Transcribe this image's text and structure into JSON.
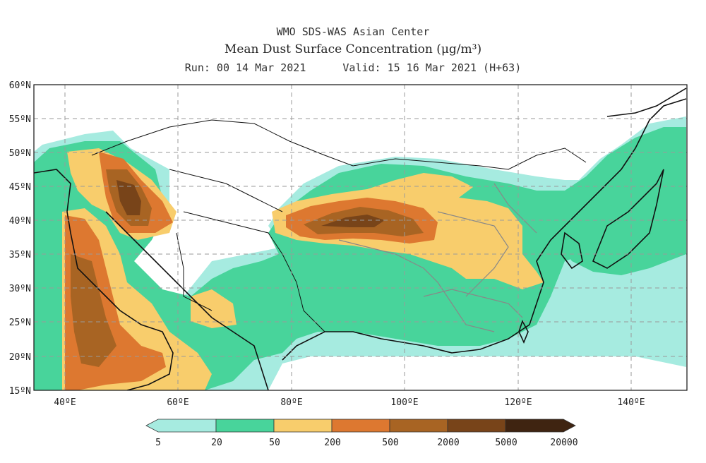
{
  "header": {
    "line1": "WMO SDS-WAS Asian Center",
    "line2": "Mean Dust Surface Concentration (μg/m³)",
    "run": "Run: 00 14 Mar 2021",
    "valid": "Valid: 15 16 Mar 2021 (H+63)"
  },
  "axes": {
    "lat_labels": [
      "60ºN",
      "55ºN",
      "50ºN",
      "45ºN",
      "40ºN",
      "35ºN",
      "30ºN",
      "25ºN",
      "20ºN",
      "15ºN"
    ],
    "lon_labels": [
      "40ºE",
      "60ºE",
      "80ºE",
      "100ºE",
      "120ºE",
      "140ºE"
    ],
    "lat_range": [
      15,
      60
    ],
    "lon_range": [
      35,
      150
    ]
  },
  "colorbar": {
    "levels": [
      "5",
      "20",
      "50",
      "200",
      "500",
      "2000",
      "5000",
      "20000"
    ],
    "colors": [
      "#a6ebe0",
      "#48d49b",
      "#f8cd6c",
      "#dd7830",
      "#a86423",
      "#784419",
      "#3f2411"
    ]
  }
}
